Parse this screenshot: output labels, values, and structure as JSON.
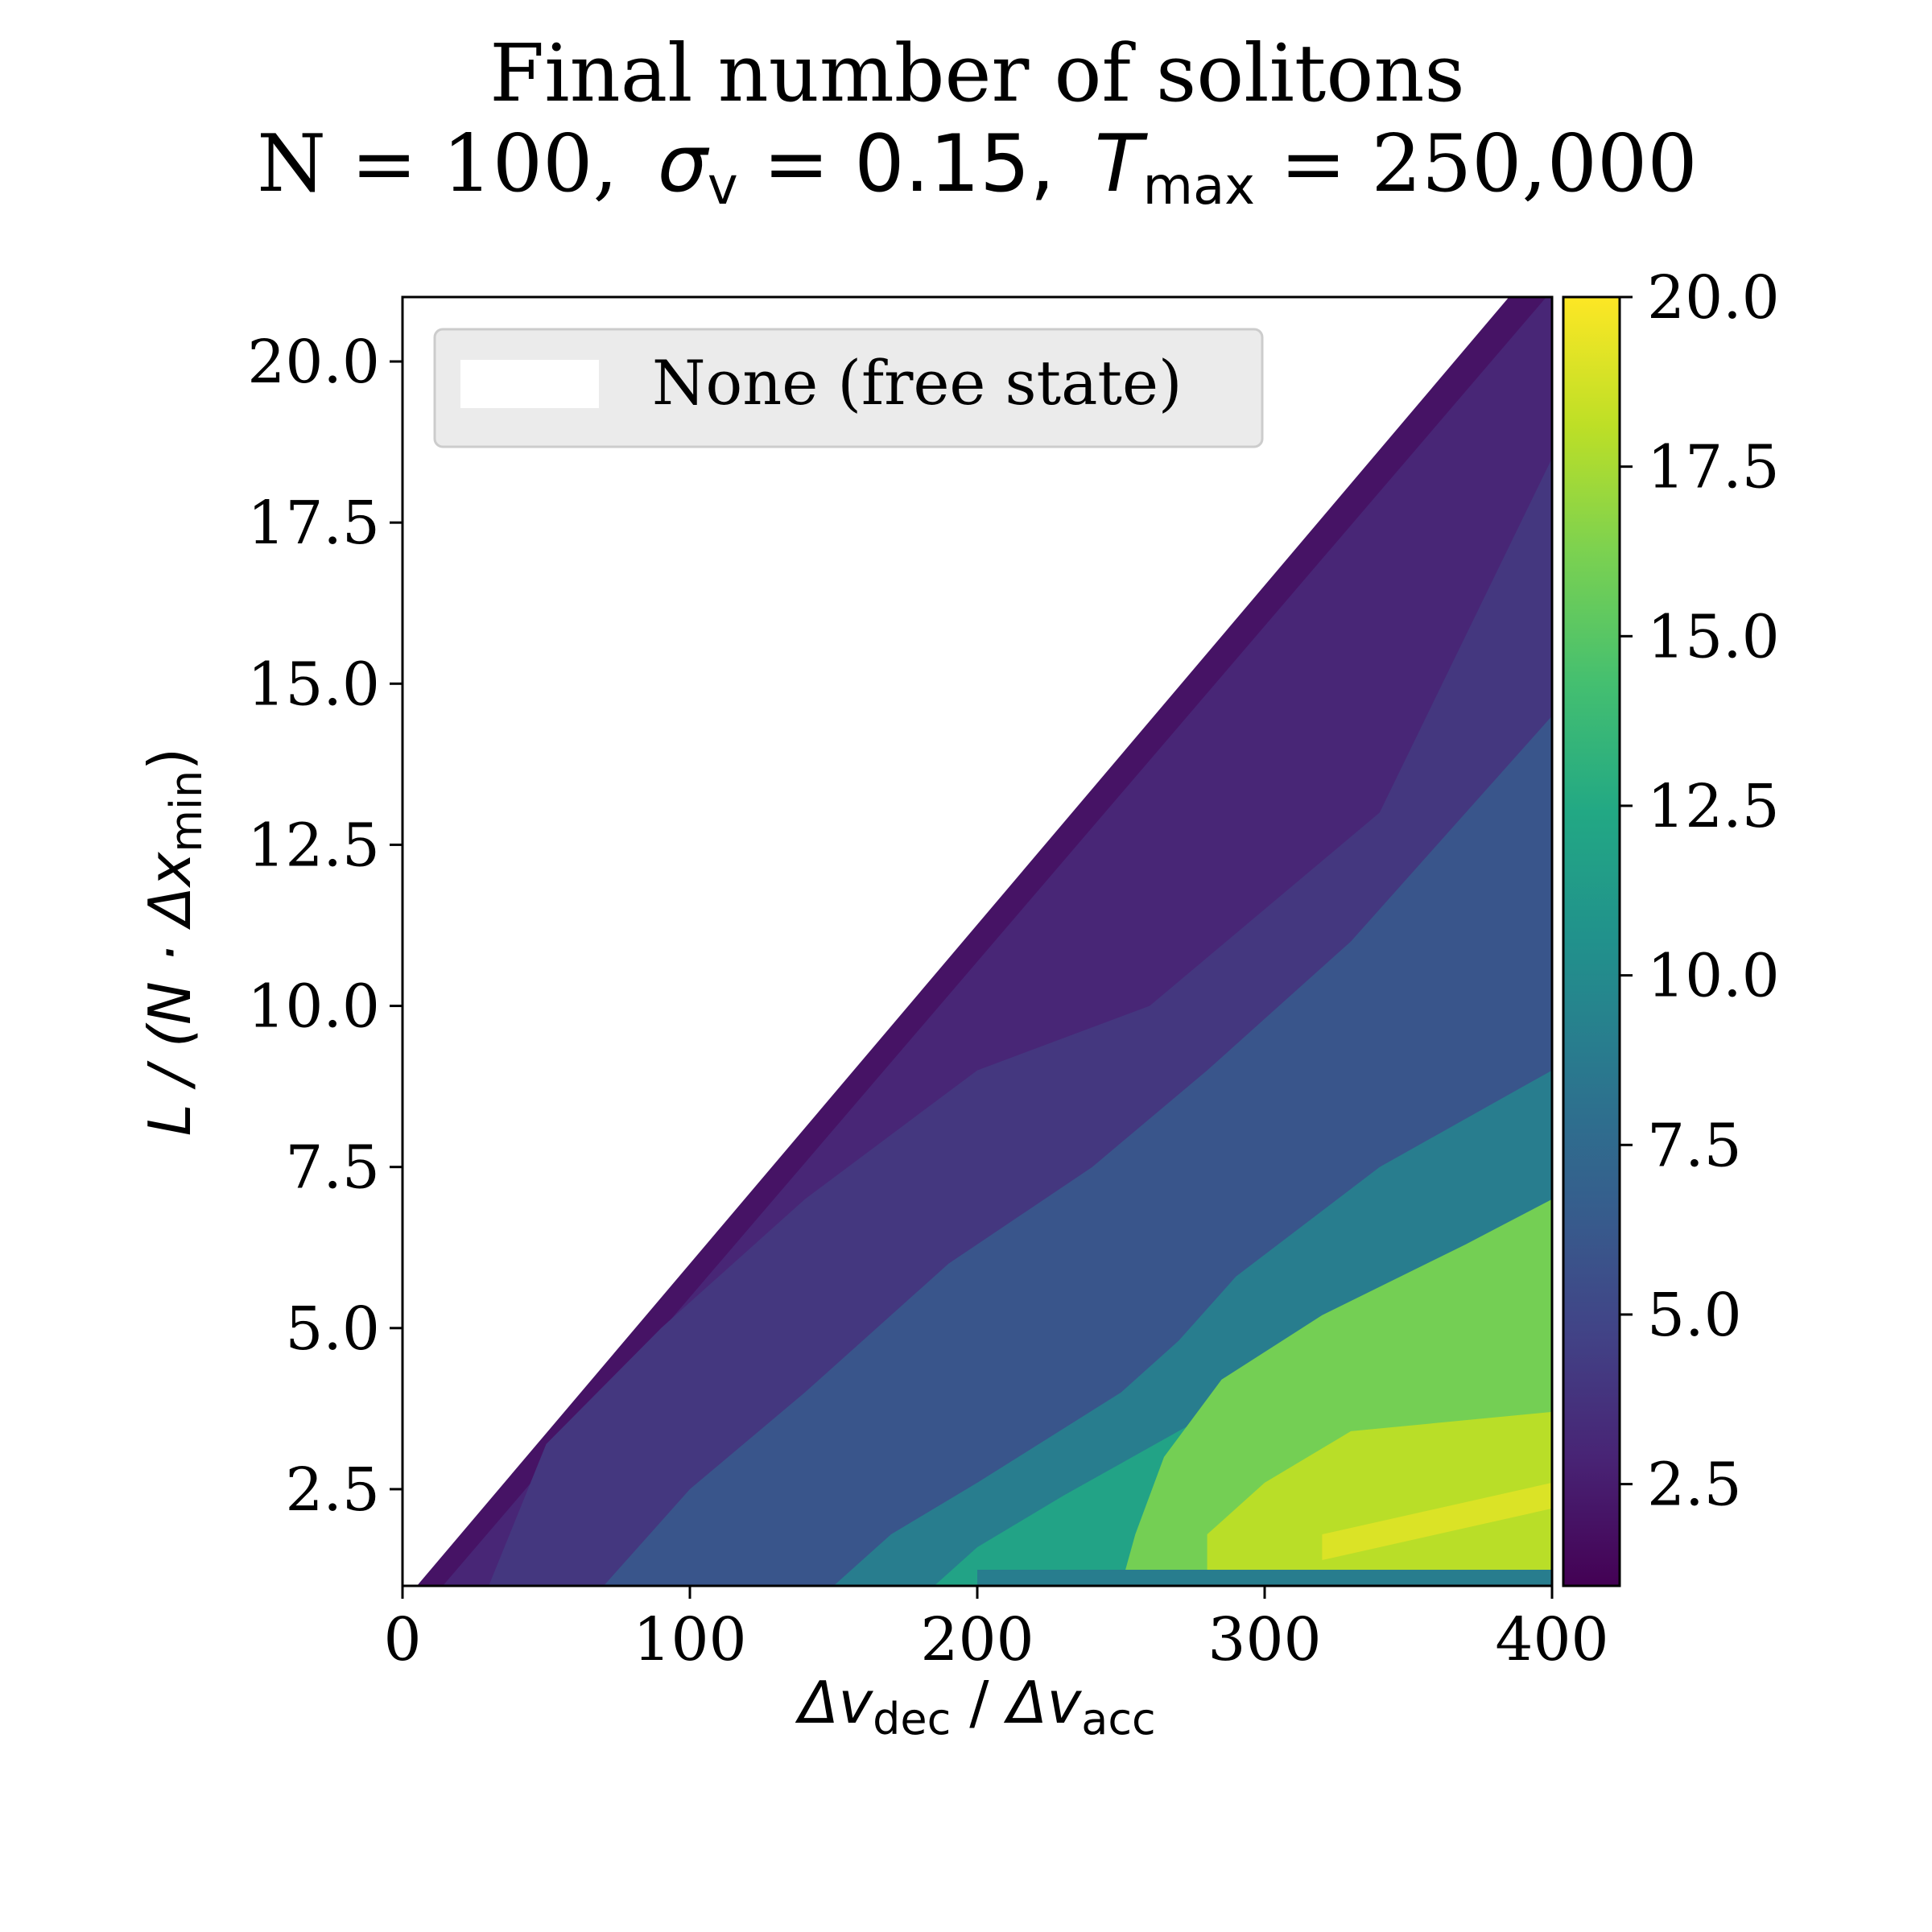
{
  "chart_data": {
    "type": "heatmap",
    "title": "Final number of solitons",
    "subtitle": {
      "n_part": "N = 100,",
      "sigma_symbol": "σ",
      "sigma_sub": "v",
      "sigma_value": " = 0.15,",
      "tmax_symbol": "T",
      "tmax_sub": "max",
      "tmax_value": " = 250,000"
    },
    "xlabel": {
      "num_symbol": "Δv",
      "num_sub": "dec",
      "sep": " / ",
      "den_symbol": "Δv",
      "den_sub": "acc"
    },
    "ylabel": {
      "prefix": "L / (N · Δx",
      "sub": "min",
      "suffix": ")"
    },
    "xlim": [
      0,
      400
    ],
    "ylim": [
      1,
      21
    ],
    "x_ticks": [
      0,
      100,
      200,
      300,
      400
    ],
    "x_tick_labels": [
      "0",
      "100",
      "200",
      "300",
      "400"
    ],
    "y_ticks": [
      2.5,
      5.0,
      7.5,
      10.0,
      12.5,
      15.0,
      17.5,
      20.0
    ],
    "y_tick_labels": [
      "2.5",
      "5.0",
      "7.5",
      "10.0",
      "12.5",
      "15.0",
      "17.5",
      "20.0"
    ],
    "colorbar": {
      "colormap": "viridis",
      "range": [
        1,
        20
      ],
      "ticks": [
        2.5,
        5.0,
        7.5,
        10.0,
        12.5,
        15.0,
        17.5,
        20.0
      ],
      "tick_labels": [
        "2.5",
        "5.0",
        "7.5",
        "10.0",
        "12.5",
        "15.0",
        "17.5",
        "20.0"
      ]
    },
    "boundary_free_state": "x ≈ 19·(L − 1); region above this line has no solitons (white)",
    "regions": [
      {
        "value": 2,
        "description": "thin band adjacent to free-state boundary"
      },
      {
        "value": 3,
        "description": "upper band"
      },
      {
        "value": 4,
        "description": "large middle region"
      },
      {
        "value": 6,
        "description": "diagonal band toward lower right"
      },
      {
        "value": 9,
        "description": "teal band, right side L ≈ 4–9"
      },
      {
        "value": 12,
        "description": "green band, L ≈ 1–5"
      },
      {
        "value": 16,
        "description": "light-green region, x > 250, L ≈ 3–7"
      },
      {
        "value": 18,
        "description": "yellow region, x > 280, L ≈ 1.5–3.5"
      }
    ],
    "legend": {
      "position": "upper-left",
      "entries": [
        {
          "label": "None (free state)",
          "swatch": "#ffffff"
        }
      ]
    },
    "grid": false
  }
}
